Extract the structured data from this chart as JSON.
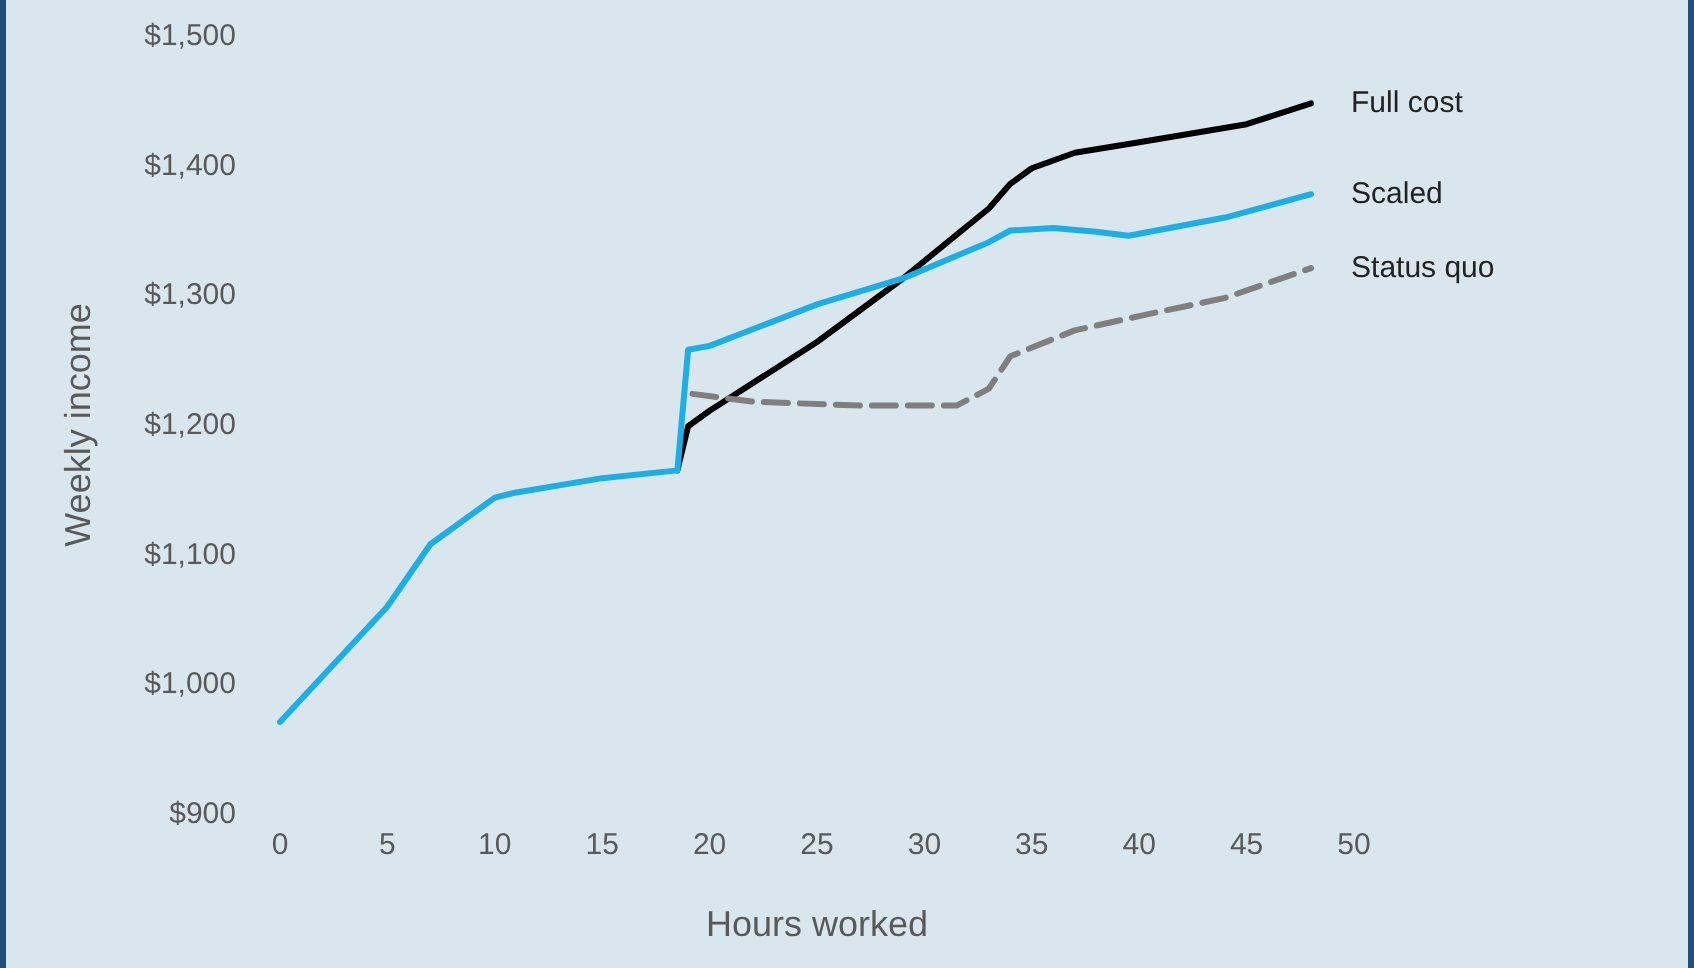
{
  "chart_data": {
    "type": "line",
    "xlabel": "Hours worked",
    "ylabel": "Weekly income",
    "xlim": [
      0,
      50
    ],
    "xticks": [
      0,
      5,
      10,
      15,
      20,
      25,
      30,
      35,
      40,
      45,
      50
    ],
    "ylim": [
      900,
      1500
    ],
    "yticks": [
      {
        "value": 900,
        "label": "$900"
      },
      {
        "value": 1000,
        "label": "$1,000"
      },
      {
        "value": 1100,
        "label": "$1,100"
      },
      {
        "value": 1200,
        "label": "$1,200"
      },
      {
        "value": 1300,
        "label": "$1,300"
      },
      {
        "value": 1400,
        "label": "$1,400"
      },
      {
        "value": 1500,
        "label": "$1,500"
      }
    ],
    "grid": false,
    "legend": false,
    "marker": "none",
    "series": [
      {
        "name": "Full cost",
        "color": "#000000",
        "line_style": "solid",
        "x": [
          18.5,
          19,
          20,
          25,
          29,
          33,
          34,
          35,
          37,
          40,
          45,
          48
        ],
        "values": [
          1165,
          1199,
          1211,
          1264,
          1313,
          1367,
          1386,
          1398,
          1410,
          1418,
          1432,
          1448
        ]
      },
      {
        "name": "Scaled",
        "color": "#1eaee6",
        "line_style": "solid",
        "x": [
          0,
          5,
          7,
          10,
          11,
          15,
          18.5,
          19,
          20,
          25,
          29,
          33,
          34,
          36,
          38,
          39.5,
          44,
          48
        ],
        "values": [
          971,
          1060,
          1108,
          1144,
          1148,
          1159,
          1165,
          1258,
          1261,
          1293,
          1313,
          1341,
          1350,
          1352,
          1349,
          1346,
          1360,
          1378
        ]
      },
      {
        "name": "Status quo",
        "color": "#7f7f7f",
        "line_style": "dashed",
        "x": [
          19.2,
          22,
          27,
          31.5,
          33,
          34,
          37,
          40,
          44,
          48
        ],
        "values": [
          1224,
          1218,
          1215,
          1215,
          1228,
          1253,
          1273,
          1284,
          1298,
          1321
        ]
      }
    ]
  }
}
